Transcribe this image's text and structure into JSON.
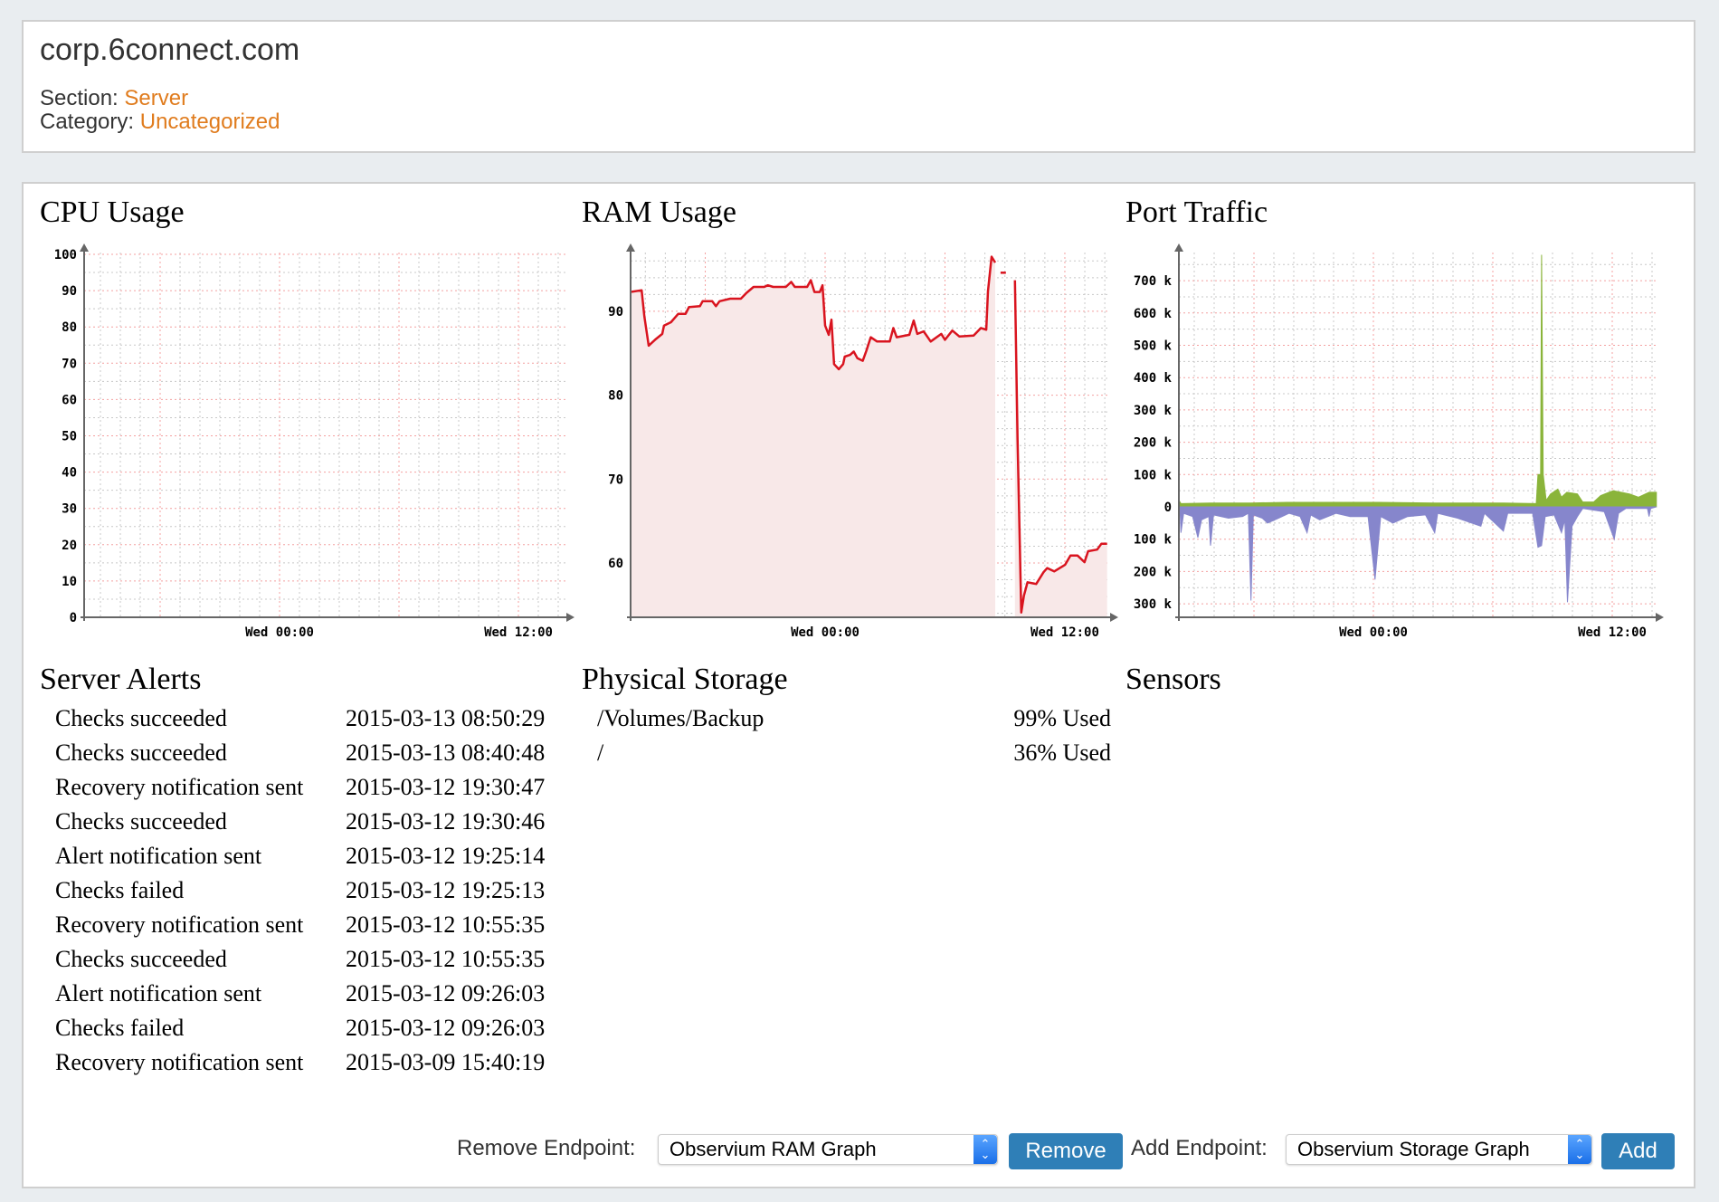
{
  "header": {
    "title": "corp.6connect.com",
    "section_label": "Section:",
    "section_value": "Server",
    "category_label": "Category:",
    "category_value": "Uncategorized"
  },
  "colors": {
    "link_orange": "#e07c1e",
    "button_blue": "#2f7fb7",
    "ram_line": "#d9141f",
    "ram_fill": "#f8e8e8",
    "port_in": "#8ab43a",
    "port_out": "#8686cc",
    "grid_major": "#f4a0a0",
    "grid_minor": "#c8c8c8"
  },
  "chart_data": [
    {
      "type": "line",
      "title": "CPU Usage",
      "ylim": [
        0,
        100
      ],
      "y_ticks": [
        {
          "value": 0,
          "label": "0"
        },
        {
          "value": 10,
          "label": "10"
        },
        {
          "value": 20,
          "label": "20"
        },
        {
          "value": 30,
          "label": "30"
        },
        {
          "value": 40,
          "label": "40"
        },
        {
          "value": 50,
          "label": "50"
        },
        {
          "value": 60,
          "label": "60"
        },
        {
          "value": 70,
          "label": "70"
        },
        {
          "value": 80,
          "label": "80"
        },
        {
          "value": 90,
          "label": "90"
        },
        {
          "value": 100,
          "label": "100"
        }
      ],
      "x_ticks": [
        {
          "time": "Wed 00:00",
          "label": "Wed 00:00"
        },
        {
          "time": "Wed 12:00",
          "label": "Wed 12:00"
        }
      ],
      "grid": true,
      "series": []
    },
    {
      "type": "area",
      "title": "RAM Usage",
      "ylim": [
        53.5,
        98
      ],
      "y_ticks": [
        {
          "value": 60,
          "label": "60"
        },
        {
          "value": 70,
          "label": "70"
        },
        {
          "value": 80,
          "label": "80"
        },
        {
          "value": 90,
          "label": "90"
        }
      ],
      "x_ticks": [
        {
          "time": "Wed 00:00",
          "label": "Wed 00:00"
        },
        {
          "time": "Wed 12:00",
          "label": "Wed 12:00"
        }
      ],
      "grid": true,
      "series": [
        {
          "color": "#d9141f",
          "segments": [
            [
              [
                "Tue 14:14",
                92.3
              ],
              [
                "Tue 14:49",
                92.5
              ],
              [
                "Tue 14:57",
                89.4
              ],
              [
                "Tue 15:10",
                85.9
              ],
              [
                "Tue 15:29",
                86.6
              ],
              [
                "Tue 15:51",
                87.3
              ],
              [
                "Tue 15:56",
                88.3
              ],
              [
                "Tue 16:17",
                88.7
              ],
              [
                "Tue 16:39",
                89.7
              ],
              [
                "Tue 17:01",
                89.7
              ],
              [
                "Tue 17:11",
                90.5
              ],
              [
                "Tue 17:44",
                90.6
              ],
              [
                "Tue 17:52",
                91.2
              ],
              [
                "Tue 18:21",
                91.2
              ],
              [
                "Tue 18:32",
                90.6
              ],
              [
                "Tue 18:43",
                91.2
              ],
              [
                "Tue 19:15",
                91.5
              ],
              [
                "Tue 19:47",
                91.5
              ],
              [
                "Tue 20:04",
                92.2
              ],
              [
                "Tue 20:25",
                92.9
              ],
              [
                "Tue 20:57",
                92.9
              ],
              [
                "Tue 21:08",
                93.1
              ],
              [
                "Tue 21:24",
                92.9
              ],
              [
                "Tue 22:02",
                92.9
              ],
              [
                "Tue 22:18",
                93.5
              ],
              [
                "Tue 22:29",
                92.9
              ],
              [
                "Tue 23:06",
                92.9
              ],
              [
                "Tue 23:17",
                93.7
              ],
              [
                "Tue 23:28",
                92.3
              ],
              [
                "Tue 23:44",
                92.3
              ],
              [
                "Tue 23:52",
                93.1
              ],
              [
                "Wed 00:00",
                88.3
              ],
              [
                "Wed 00:11",
                87.2
              ],
              [
                "Wed 00:19",
                89.0
              ],
              [
                "Wed 00:27",
                83.7
              ],
              [
                "Wed 00:41",
                83.1
              ],
              [
                "Wed 00:54",
                83.7
              ],
              [
                "Wed 00:59",
                84.6
              ],
              [
                "Wed 01:15",
                84.8
              ],
              [
                "Wed 01:26",
                85.2
              ],
              [
                "Wed 01:37",
                84.4
              ],
              [
                "Wed 01:53",
                84.1
              ],
              [
                "Wed 02:04",
                85.3
              ],
              [
                "Wed 02:17",
                86.9
              ],
              [
                "Wed 02:36",
                86.4
              ],
              [
                "Wed 03:14",
                86.4
              ],
              [
                "Wed 03:25",
                88.0
              ],
              [
                "Wed 03:35",
                86.9
              ],
              [
                "Wed 04:13",
                87.2
              ],
              [
                "Wed 04:26",
                88.9
              ],
              [
                "Wed 04:37",
                87.3
              ],
              [
                "Wed 04:56",
                87.6
              ],
              [
                "Wed 05:17",
                86.4
              ],
              [
                "Wed 05:49",
                87.3
              ],
              [
                "Wed 06:00",
                86.6
              ],
              [
                "Wed 06:22",
                87.7
              ],
              [
                "Wed 06:43",
                87.0
              ],
              [
                "Wed 07:26",
                87.1
              ],
              [
                "Wed 07:48",
                88.0
              ],
              [
                "Wed 08:04",
                87.8
              ],
              [
                "Wed 08:09",
                92.4
              ],
              [
                "Wed 08:20",
                96.5
              ],
              [
                "Wed 08:31",
                95.8
              ]
            ],
            [
              [
                "Wed 08:47",
                94.6
              ],
              [
                "Wed 09:03",
                94.6
              ]
            ],
            [
              [
                "Wed 09:30",
                93.7
              ],
              [
                "Wed 09:38",
                74.7
              ],
              [
                "Wed 09:49",
                54.1
              ],
              [
                "Wed 09:57",
                56.1
              ],
              [
                "Wed 10:08",
                57.7
              ],
              [
                "Wed 10:34",
                57.5
              ],
              [
                "Wed 10:56",
                58.9
              ],
              [
                "Wed 11:07",
                59.4
              ],
              [
                "Wed 11:28",
                59.0
              ],
              [
                "Wed 12:01",
                59.8
              ],
              [
                "Wed 12:17",
                60.9
              ],
              [
                "Wed 12:38",
                60.9
              ],
              [
                "Wed 12:59",
                60.1
              ],
              [
                "Wed 13:10",
                61.4
              ],
              [
                "Wed 13:37",
                61.6
              ],
              [
                "Wed 13:50",
                62.3
              ],
              [
                "Wed 14:07",
                62.3
              ]
            ]
          ]
        }
      ]
    },
    {
      "type": "area",
      "title": "Port Traffic",
      "ylim": [
        -330,
        800
      ],
      "y_unit": "k",
      "y_ticks": [
        {
          "value": 700,
          "label": "700 k"
        },
        {
          "value": 600,
          "label": "600 k"
        },
        {
          "value": 500,
          "label": "500 k"
        },
        {
          "value": 400,
          "label": "400 k"
        },
        {
          "value": 300,
          "label": "300 k"
        },
        {
          "value": 200,
          "label": "200 k"
        },
        {
          "value": 100,
          "label": "100 k"
        },
        {
          "value": 0,
          "label": "0"
        },
        {
          "value": -100,
          "label": "100 k"
        },
        {
          "value": -200,
          "label": "200 k"
        },
        {
          "value": -300,
          "label": "300 k"
        }
      ],
      "x_ticks": [
        {
          "time": "Wed 00:00",
          "label": "Wed 00:00"
        },
        {
          "time": "Wed 12:00",
          "label": "Wed 12:00"
        }
      ],
      "grid": true,
      "series": [
        {
          "color": "#8ab43a",
          "segments": [
            [
              [
                "Tue 14:17",
                15
              ],
              [
                "Tue 14:20",
                10
              ],
              [
                "Tue 15:49",
                12
              ],
              [
                "Tue 17:51",
                12
              ],
              [
                "Tue 19:40",
                14
              ],
              [
                "Wed 00:05",
                14
              ],
              [
                "Wed 03:05",
                12
              ],
              [
                "Wed 06:32",
                12
              ],
              [
                "Wed 08:11",
                10
              ],
              [
                "Wed 08:16",
                100
              ],
              [
                "Wed 08:24",
                100
              ],
              [
                "Wed 08:27",
                780
              ],
              [
                "Wed 08:32",
                100
              ],
              [
                "Wed 08:41",
                20
              ],
              [
                "Wed 08:54",
                40
              ],
              [
                "Wed 09:16",
                55
              ],
              [
                "Wed 09:27",
                30
              ],
              [
                "Wed 09:43",
                45
              ],
              [
                "Wed 10:15",
                40
              ],
              [
                "Wed 10:31",
                15
              ],
              [
                "Wed 11:04",
                15
              ],
              [
                "Wed 11:25",
                35
              ],
              [
                "Wed 12:03",
                50
              ],
              [
                "Wed 12:52",
                40
              ],
              [
                "Wed 13:19",
                30
              ],
              [
                "Wed 13:51",
                45
              ],
              [
                "Wed 14:13",
                45
              ]
            ]
          ]
        },
        {
          "color": "#8686cc",
          "segments": [
            [
              [
                "Tue 14:17",
                -5
              ],
              [
                "Tue 14:20",
                -80
              ],
              [
                "Tue 14:28",
                -20
              ],
              [
                "Tue 14:55",
                -30
              ],
              [
                "Tue 15:11",
                -95
              ],
              [
                "Tue 15:22",
                -40
              ],
              [
                "Tue 15:44",
                -30
              ],
              [
                "Tue 15:49",
                -120
              ],
              [
                "Tue 15:58",
                -25
              ],
              [
                "Tue 16:43",
                -35
              ],
              [
                "Tue 17:26",
                -30
              ],
              [
                "Tue 17:43",
                -20
              ],
              [
                "Tue 17:51",
                -290
              ],
              [
                "Tue 17:58",
                -25
              ],
              [
                "Tue 18:25",
                -35
              ],
              [
                "Tue 18:41",
                -50
              ],
              [
                "Tue 19:14",
                -35
              ],
              [
                "Tue 19:46",
                -20
              ],
              [
                "Tue 20:19",
                -30
              ],
              [
                "Tue 20:40",
                -80
              ],
              [
                "Tue 20:51",
                -25
              ],
              [
                "Tue 21:18",
                -40
              ],
              [
                "Tue 22:07",
                -20
              ],
              [
                "Tue 22:50",
                -30
              ],
              [
                "Tue 23:44",
                -30
              ],
              [
                "Wed 00:05",
                -225
              ],
              [
                "Wed 00:22",
                -30
              ],
              [
                "Wed 00:59",
                -50
              ],
              [
                "Wed 01:43",
                -30
              ],
              [
                "Wed 02:37",
                -25
              ],
              [
                "Wed 03:05",
                -80
              ],
              [
                "Wed 03:14",
                -20
              ],
              [
                "Wed 04:14",
                -35
              ],
              [
                "Wed 05:24",
                -60
              ],
              [
                "Wed 05:35",
                -20
              ],
              [
                "Wed 06:32",
                -75
              ],
              [
                "Wed 06:45",
                -20
              ],
              [
                "Wed 08:00",
                -20
              ],
              [
                "Wed 08:16",
                -125
              ],
              [
                "Wed 08:27",
                -120
              ],
              [
                "Wed 08:38",
                -30
              ],
              [
                "Wed 09:05",
                -25
              ],
              [
                "Wed 09:27",
                -80
              ],
              [
                "Wed 09:37",
                -40
              ],
              [
                "Wed 09:45",
                -295
              ],
              [
                "Wed 09:59",
                -60
              ],
              [
                "Wed 10:15",
                -30
              ],
              [
                "Wed 10:31",
                -5
              ],
              [
                "Wed 11:36",
                -15
              ],
              [
                "Wed 12:06",
                -100
              ],
              [
                "Wed 12:19",
                -20
              ],
              [
                "Wed 12:41",
                -5
              ],
              [
                "Wed 13:46",
                -5
              ],
              [
                "Wed 13:51",
                -30
              ],
              [
                "Wed 13:56",
                -5
              ],
              [
                "Wed 14:13",
                0
              ]
            ]
          ]
        }
      ]
    }
  ],
  "alerts": {
    "title": "Server Alerts",
    "rows": [
      {
        "event": "Checks succeeded",
        "time": "2015-03-13 08:50:29"
      },
      {
        "event": "Checks succeeded",
        "time": "2015-03-13 08:40:48"
      },
      {
        "event": "Recovery notification sent",
        "time": "2015-03-12 19:30:47"
      },
      {
        "event": "Checks succeeded",
        "time": "2015-03-12 19:30:46"
      },
      {
        "event": "Alert notification sent",
        "time": "2015-03-12 19:25:14"
      },
      {
        "event": "Checks failed",
        "time": "2015-03-12 19:25:13"
      },
      {
        "event": "Recovery notification sent",
        "time": "2015-03-12 10:55:35"
      },
      {
        "event": "Checks succeeded",
        "time": "2015-03-12 10:55:35"
      },
      {
        "event": "Alert notification sent",
        "time": "2015-03-12 09:26:03"
      },
      {
        "event": "Checks failed",
        "time": "2015-03-12 09:26:03"
      },
      {
        "event": "Recovery notification sent",
        "time": "2015-03-09 15:40:19"
      }
    ]
  },
  "storage": {
    "title": "Physical Storage",
    "rows": [
      {
        "path": "/Volumes/Backup",
        "usage": "99% Used"
      },
      {
        "path": "/",
        "usage": "36% Used"
      }
    ]
  },
  "sensors": {
    "title": "Sensors"
  },
  "controls": {
    "remove_label": "Remove Endpoint:",
    "remove_select": "Observium RAM Graph",
    "remove_button": "Remove",
    "add_label": "Add Endpoint:",
    "add_select": "Observium Storage Graph",
    "add_button": "Add"
  }
}
